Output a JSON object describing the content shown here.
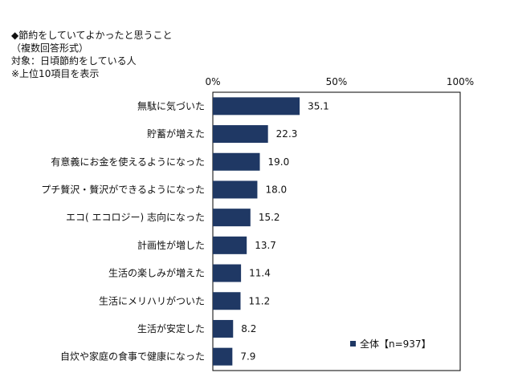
{
  "header": {
    "lines": [
      "◆節約をしていてよかったと思うこと",
      "（複数回答形式）",
      "対象：日頃節約をしている人",
      "※上位10項目を表示"
    ]
  },
  "chart_data": {
    "type": "bar",
    "orientation": "horizontal",
    "categories": [
      "無駄に気づいた",
      "貯蓄が増えた",
      "有意義にお金を使えるようになった",
      "プチ贅沢・贅沢ができるようになった",
      "エコ( エコロジー) 志向になった",
      "計画性が増した",
      "生活の楽しみが増えた",
      "生活にメリハリがついた",
      "生活が安定した",
      "自炊や家庭の食事で健康になった"
    ],
    "series": [
      {
        "name": "全体【n=937】",
        "values": [
          35.1,
          22.3,
          19.0,
          18.0,
          15.2,
          13.7,
          11.4,
          11.2,
          8.2,
          7.9
        ],
        "value_labels": [
          "35.1",
          "22.3",
          "19.0",
          "18.0",
          "15.2",
          "13.7",
          "11.4",
          "11.2",
          "8.2",
          "7.9"
        ],
        "color": "#1f3864"
      }
    ],
    "xlim": [
      0,
      100
    ],
    "xticks": [
      "0%",
      "50%",
      "100%"
    ],
    "xtick_values": [
      0,
      50,
      100
    ],
    "grid": false,
    "legend": "bottom-right"
  }
}
